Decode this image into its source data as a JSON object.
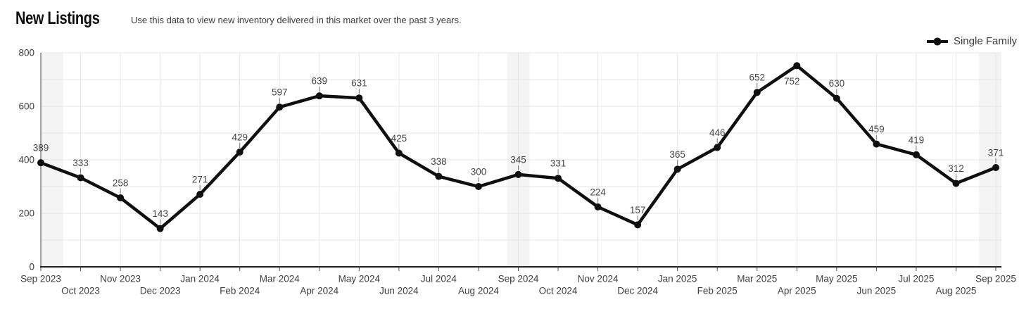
{
  "header": {
    "title": "New Listings",
    "subtitle": "Use this data to view new inventory delivered in this market over the past 3 years."
  },
  "legend": {
    "items": [
      {
        "label": "Single Family",
        "color": "#0f0f0f"
      }
    ]
  },
  "chart_data": {
    "type": "line",
    "title": "New Listings",
    "subtitle": "Use this data to view new inventory delivered in this market over the past 3 years.",
    "categories": [
      "Sep 2023",
      "Oct 2023",
      "Nov 2023",
      "Dec 2023",
      "Jan 2024",
      "Feb 2024",
      "Mar 2024",
      "Apr 2024",
      "May 2024",
      "Jun 2024",
      "Jul 2024",
      "Aug 2024",
      "Sep 2024",
      "Oct 2024",
      "Nov 2024",
      "Dec 2024",
      "Jan 2025",
      "Feb 2025",
      "Mar 2025",
      "Apr 2025",
      "May 2025",
      "Jun 2025",
      "Jul 2025",
      "Aug 2025",
      "Sep 2025"
    ],
    "series": [
      {
        "name": "Single Family",
        "color": "#0f0f0f",
        "values": [
          389,
          333,
          258,
          143,
          271,
          429,
          597,
          639,
          631,
          425,
          338,
          300,
          345,
          331,
          224,
          157,
          365,
          446,
          652,
          752,
          630,
          459,
          419,
          312,
          371
        ]
      }
    ],
    "xlabel": "",
    "ylabel": "",
    "ylim": [
      0,
      800
    ],
    "yticks": [
      0,
      200,
      400,
      600,
      800
    ],
    "grid": true,
    "minor_grid_step": 100,
    "legend_position": "top-right",
    "highlighted_categories": [
      "Sep 2023",
      "Sep 2024",
      "Sep 2025"
    ],
    "colors": {
      "line": "#0f0f0f",
      "grid": "#e6e6e6",
      "band": "#f4f4f4",
      "axis": "#222222",
      "y_axis": "#777777",
      "label": "#3e3e3e"
    }
  }
}
